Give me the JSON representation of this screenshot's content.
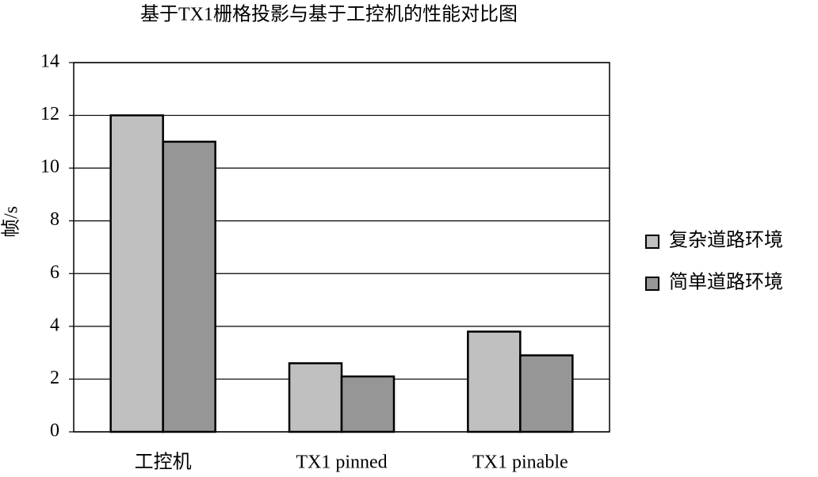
{
  "chart_data": {
    "type": "bar",
    "title": "基于TX1栅格投影与基于工控机的性能对比图",
    "y_label": "帧/s",
    "categories": [
      "工控机",
      "TX1 pinned",
      "TX1 pinable"
    ],
    "series": [
      {
        "name": "复杂道路环境",
        "color": "#c0c0c0",
        "values": [
          12,
          2.6,
          3.8
        ]
      },
      {
        "name": "简单道路环境",
        "color": "#969696",
        "values": [
          11,
          2.1,
          2.9
        ]
      }
    ],
    "ylim": [
      0,
      14
    ],
    "yticks": [
      0,
      2,
      4,
      6,
      8,
      10,
      12,
      14
    ],
    "grid": true,
    "legend": "right"
  }
}
